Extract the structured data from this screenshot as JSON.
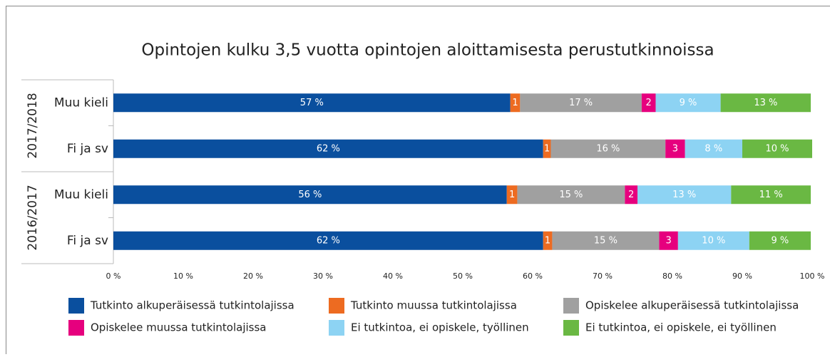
{
  "chart_data": {
    "type": "stacked-barh",
    "title": "Opintojen kulku 3,5 vuotta opintojen aloittamisesta perustutkinnoissa",
    "categories": [
      "Muu kieli",
      "Fi ja sv",
      "Muu kieli",
      "Fi ja sv"
    ],
    "group_labels": [
      "2017/2018",
      "2016/2017"
    ],
    "series": [
      {
        "name": "Tutkinto alkuperäisessä tutkintolajissa",
        "color": "#0a4f9e",
        "values": [
          56.8,
          61.5,
          56.3,
          61.5
        ],
        "value_labels": [
          "57 %",
          "62 %",
          "56 %",
          "62 %"
        ]
      },
      {
        "name": "Tutkinto muussa tutkintolajissa",
        "color": "#ed6b21",
        "values": [
          1.4,
          1.1,
          1.5,
          1.3
        ],
        "value_labels": [
          "1",
          "1",
          "1",
          "1"
        ]
      },
      {
        "name": "Opiskelee alkuperäisessä tutkintolajissa",
        "color": "#a0a0a0",
        "values": [
          17.4,
          16.4,
          15.4,
          15.3
        ],
        "value_labels": [
          "17 %",
          "16 %",
          "15 %",
          "15 %"
        ]
      },
      {
        "name": "Opiskelee muussa tutkintolajissa",
        "color": "#e6007e",
        "values": [
          2.0,
          2.8,
          1.8,
          2.7
        ],
        "value_labels": [
          "2",
          "3",
          "2",
          "3"
        ]
      },
      {
        "name": "Ei tutkintoa, ei opiskele, työllinen",
        "color": "#8dd3f3",
        "values": [
          9.3,
          8.2,
          13.4,
          10.2
        ],
        "value_labels": [
          "9 %",
          "8 %",
          "13 %",
          "10 %"
        ]
      },
      {
        "name": "Ei tutkintoa, ei opiskele, ei työllinen",
        "color": "#6ab843",
        "values": [
          12.9,
          10.0,
          11.4,
          8.8
        ],
        "value_labels": [
          "13 %",
          "10 %",
          "11 %",
          "9 %"
        ]
      }
    ],
    "xlim": [
      0,
      100
    ],
    "xticks": [
      {
        "value": 0,
        "label": "0 %"
      },
      {
        "value": 10,
        "label": "10 %"
      },
      {
        "value": 20,
        "label": "20 %"
      },
      {
        "value": 30,
        "label": "30 %"
      },
      {
        "value": 40,
        "label": "40 %"
      },
      {
        "value": 50,
        "label": "50 %"
      },
      {
        "value": 60,
        "label": "60 %"
      },
      {
        "value": 70,
        "label": "70 %"
      },
      {
        "value": 80,
        "label": "80 %"
      },
      {
        "value": 90,
        "label": "90 %"
      },
      {
        "value": 100,
        "label": "100 %"
      }
    ],
    "legend": "bottom"
  }
}
